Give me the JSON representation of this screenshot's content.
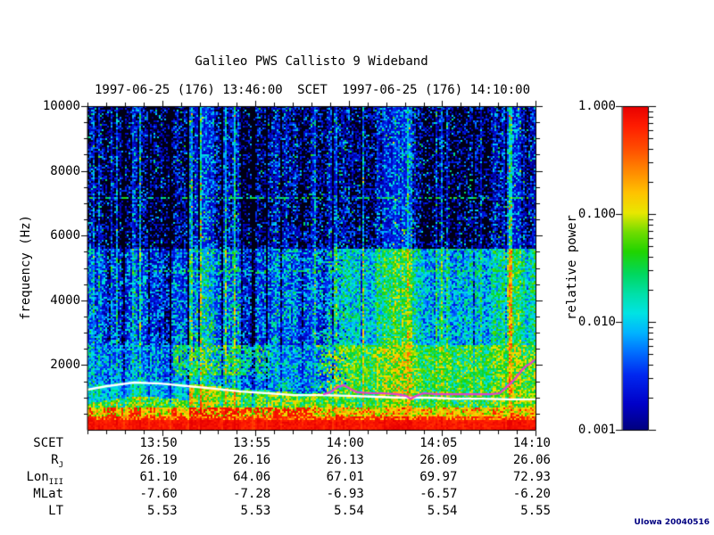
{
  "title": "Galileo PWS Callisto 9 Wideband",
  "header": {
    "start_time": "1997-06-25 (176) 13:46:00",
    "center_label": "SCET",
    "end_time": "1997-06-25 (176) 14:10:00"
  },
  "watermark": "UIowa 20040516",
  "colors": {
    "background": "#ffffff",
    "text": "#000000",
    "watermark": "#000080",
    "white_overlay_line": "#ffffff",
    "magenta_overlay_line": "#e040d0"
  },
  "chart_data": {
    "type": "heatmap",
    "subtype": "spectrogram",
    "title": "Galileo PWS Callisto 9 Wideband",
    "time_axis_label": "SCET",
    "time_start": "1997-06-25 (176) 13:46:00",
    "time_end": "1997-06-25 (176) 14:10:00",
    "duration_minutes": 24,
    "ylabel": "frequency (Hz)",
    "ylim": [
      0,
      10000
    ],
    "yticks": [
      10000,
      8000,
      6000,
      4000,
      2000
    ],
    "y_minor_step_hz": 500,
    "x_major_tick_minutes": [
      4,
      9,
      14,
      19,
      24
    ],
    "x_major_tick_labels": [
      "13:50",
      "13:55",
      "14:00",
      "14:05",
      "14:10"
    ],
    "x_minor_tick_step_minutes": 1,
    "colorbar": {
      "label": "relative power",
      "scale": "log",
      "range": [
        0.001,
        1.0
      ],
      "tick_labels": [
        "1.000",
        "0.100",
        "0.010",
        "0.001"
      ],
      "gradient_stops": [
        [
          0.0,
          "#000080"
        ],
        [
          0.08,
          "#0000c8"
        ],
        [
          0.17,
          "#0028f0"
        ],
        [
          0.24,
          "#0070ff"
        ],
        [
          0.3,
          "#00b4ff"
        ],
        [
          0.36,
          "#00e4e4"
        ],
        [
          0.42,
          "#00e0a8"
        ],
        [
          0.48,
          "#00d860"
        ],
        [
          0.55,
          "#20d400"
        ],
        [
          0.61,
          "#70dc00"
        ],
        [
          0.67,
          "#e8e800"
        ],
        [
          0.73,
          "#ffc400"
        ],
        [
          0.8,
          "#ff8800"
        ],
        [
          0.87,
          "#ff4c00"
        ],
        [
          0.94,
          "#ff1c00"
        ],
        [
          1.0,
          "#e80000"
        ]
      ]
    },
    "ephemeris": {
      "columns": [
        "13:50",
        "13:55",
        "14:00",
        "14:05",
        "14:10"
      ],
      "rows": [
        {
          "label": "SCET",
          "sub": "",
          "values": [
            "13:50",
            "13:55",
            "14:00",
            "14:05",
            "14:10"
          ]
        },
        {
          "label": "R",
          "sub": "J",
          "values": [
            "26.19",
            "26.16",
            "26.13",
            "26.09",
            "26.06"
          ]
        },
        {
          "label": "Lon",
          "sub": "III",
          "values": [
            "61.10",
            "64.06",
            "67.01",
            "69.97",
            "72.93"
          ]
        },
        {
          "label": "MLat",
          "sub": "",
          "values": [
            "-7.60",
            "-7.28",
            "-6.93",
            "-6.57",
            "-6.20"
          ]
        },
        {
          "label": "LT",
          "sub": "",
          "values": [
            "5.53",
            "5.53",
            "5.54",
            "5.54",
            "5.55"
          ]
        }
      ]
    },
    "overlays": [
      {
        "name": "white-cutoff-line",
        "color": "#ffffff",
        "points": [
          [
            0.0,
            1240
          ],
          [
            0.044,
            1350
          ],
          [
            0.104,
            1460
          ],
          [
            0.163,
            1430
          ],
          [
            0.223,
            1350
          ],
          [
            0.283,
            1270
          ],
          [
            0.343,
            1180
          ],
          [
            0.402,
            1130
          ],
          [
            0.462,
            1070
          ],
          [
            0.522,
            1070
          ],
          [
            0.582,
            1050
          ],
          [
            0.641,
            1020
          ],
          [
            0.701,
            990
          ],
          [
            0.761,
            990
          ],
          [
            0.821,
            960
          ],
          [
            0.88,
            960
          ],
          [
            0.94,
            940
          ],
          [
            1.0,
            940
          ]
        ]
      },
      {
        "name": "magenta-cutoff-line",
        "color": "#e040d0",
        "points": [
          [
            0.528,
            1100
          ],
          [
            0.542,
            1160
          ],
          [
            0.558,
            1320
          ],
          [
            0.572,
            1380
          ],
          [
            0.586,
            1270
          ],
          [
            0.602,
            1160
          ],
          [
            0.631,
            1130
          ],
          [
            0.661,
            1130
          ],
          [
            0.691,
            1100
          ],
          [
            0.711,
            1050
          ],
          [
            0.721,
            960
          ],
          [
            0.737,
            1070
          ],
          [
            0.751,
            1130
          ],
          [
            0.781,
            1100
          ],
          [
            0.811,
            1100
          ],
          [
            0.841,
            1100
          ],
          [
            0.871,
            1100
          ],
          [
            0.9,
            1100
          ],
          [
            0.92,
            1130
          ],
          [
            0.94,
            1380
          ],
          [
            0.956,
            1600
          ],
          [
            0.97,
            1850
          ],
          [
            0.98,
            1980
          ],
          [
            0.988,
            2040
          ],
          [
            0.997,
            2150
          ]
        ]
      }
    ],
    "texture_features": {
      "seed": 20040516,
      "description": "Dark navy speckled background above ~2.6 kHz with vertical streaks; enhanced blue-green emission on right half below ~5.6 kHz after ~13:59; broadband green/yellow band 0.7-2.6 kHz; intense red band below ~430 Hz; red burst blobs 430-700 Hz strongest 13:51-13:58; dashed cyan interference lines at ~7160 Hz and ~4880 Hz.",
      "horizontal_interference_lines_hz": [
        7160,
        4880
      ],
      "solid_red_band_max_hz": 280,
      "red_mixed_band_hz": [
        280,
        430
      ],
      "red_blob_band_hz": [
        430,
        700
      ],
      "green_band_hz": [
        700,
        2600
      ],
      "right_enhancement_start_fraction": 0.54,
      "right_enhancement_max_hz": 5600
    }
  }
}
